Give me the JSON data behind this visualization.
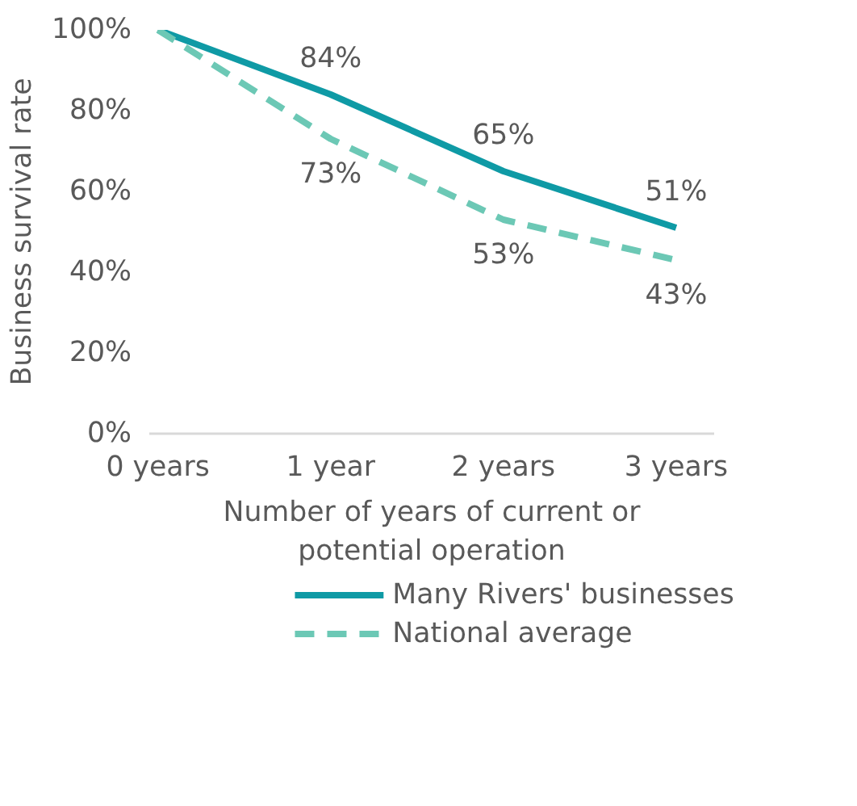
{
  "chart_data": {
    "type": "line",
    "xlabel": "Number of years of current or\npotential operation",
    "ylabel": "Business survival rate",
    "categories": [
      "0 years",
      "1 year",
      "2 years",
      "3 years"
    ],
    "ylim": [
      0,
      100
    ],
    "yticks": [
      {
        "value": 0,
        "label": "0%"
      },
      {
        "value": 20,
        "label": "20%"
      },
      {
        "value": 40,
        "label": "40%"
      },
      {
        "value": 60,
        "label": "60%"
      },
      {
        "value": 80,
        "label": "80%"
      },
      {
        "value": 100,
        "label": "100%"
      }
    ],
    "series": [
      {
        "name": "Many Rivers' businesses",
        "color": "#0f9aa5",
        "values": [
          100,
          84,
          65,
          51
        ],
        "value_labels": [
          null,
          "84%",
          "65%",
          "51%"
        ],
        "line_style": "solid"
      },
      {
        "name": "National average",
        "color": "#6cc8b5",
        "values": [
          100,
          73,
          53,
          43
        ],
        "value_labels": [
          null,
          "73%",
          "53%",
          "43%"
        ],
        "line_style": "dashed"
      }
    ],
    "grid": false,
    "legend": "bottom",
    "marker": "none"
  }
}
